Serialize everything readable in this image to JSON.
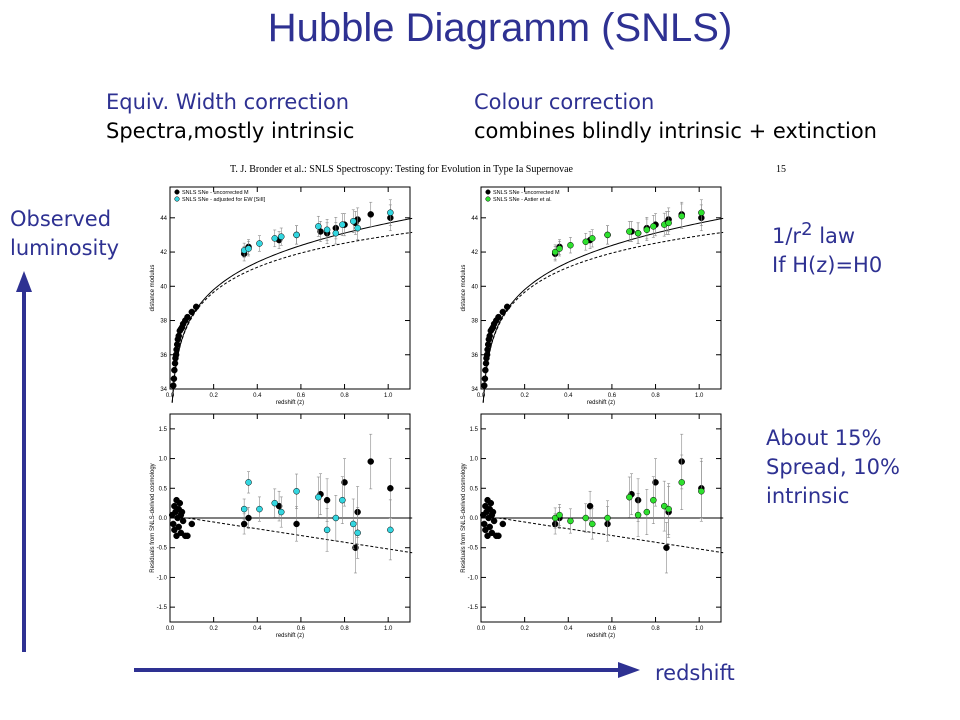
{
  "slide": {
    "title": "Hubble Diagramm (SNLS)",
    "left_note": {
      "line1": "Equiv. Width correction",
      "line2": "Spectra,mostly intrinsic"
    },
    "right_note": {
      "line1": "Colour correction",
      "line2": "combines blindly intrinsic + extinction"
    },
    "observed_luminosity": [
      "Observed",
      "luminosity"
    ],
    "inverse_square": {
      "prefix": "1/r",
      "power": "2",
      "suffix": " law",
      "line2": "If H(z)=H0"
    },
    "spread": [
      "About 15%",
      "Spread, 10%",
      "intrinsic"
    ],
    "redshift_arrow_label": "redshift",
    "arrow_color": "#2e3192"
  },
  "paper": {
    "header": "T. J. Bronder et al.: SNLS Spectroscopy: Testing for Evolution in Type Ia Supernovae",
    "page_number": "15"
  },
  "chart_data": [
    {
      "type": "scatter",
      "panel": "top-left",
      "xlabel": "redshift (z)",
      "ylabel": "distance modulus",
      "xlim": [
        0,
        1.1
      ],
      "ylim": [
        34,
        45.8
      ],
      "xticks": [
        "0.0",
        "0.2",
        "0.4",
        "0.6",
        "0.8",
        "1.0"
      ],
      "yticks": [
        "34",
        "36",
        "38",
        "40",
        "42",
        "44"
      ],
      "legend": [
        "SNLS SNe - uncorrected M",
        "SNLS SNe - adjusted for EW [SiII]"
      ],
      "legend_position": "top-left",
      "series": [
        {
          "name": "SNLS SNe - uncorrected M",
          "color": "#000000",
          "x": [
            0.015,
            0.018,
            0.02,
            0.023,
            0.025,
            0.028,
            0.03,
            0.033,
            0.036,
            0.04,
            0.045,
            0.05,
            0.055,
            0.06,
            0.07,
            0.08,
            0.1,
            0.12,
            0.34,
            0.36,
            0.5,
            0.58,
            0.69,
            0.72,
            0.76,
            0.8,
            0.85,
            0.86,
            0.92,
            1.01
          ],
          "y": [
            34.2,
            34.6,
            35.1,
            35.5,
            35.8,
            36.0,
            36.3,
            36.6,
            36.9,
            37.1,
            37.4,
            37.5,
            37.6,
            37.8,
            38.0,
            38.2,
            38.5,
            38.8,
            41.9,
            42.3,
            42.7,
            43.0,
            43.2,
            43.1,
            43.4,
            43.6,
            43.7,
            43.9,
            44.2,
            44.0
          ]
        },
        {
          "name": "SNLS SNe - adjusted for EW [SiII]",
          "color": "#33d6e0",
          "x": [
            0.34,
            0.36,
            0.41,
            0.48,
            0.51,
            0.58,
            0.68,
            0.72,
            0.76,
            0.79,
            0.84,
            0.86,
            1.01
          ],
          "y": [
            42.1,
            42.2,
            42.5,
            42.8,
            42.9,
            43.0,
            43.5,
            43.3,
            43.1,
            43.6,
            43.8,
            43.4,
            44.3
          ]
        }
      ]
    },
    {
      "type": "scatter",
      "panel": "top-right",
      "xlabel": "redshift (z)",
      "ylabel": "distance modulus",
      "xlim": [
        0,
        1.1
      ],
      "ylim": [
        34,
        45.8
      ],
      "xticks": [
        "0.0",
        "0.2",
        "0.4",
        "0.6",
        "0.8",
        "1.0"
      ],
      "yticks": [
        "34",
        "36",
        "38",
        "40",
        "42",
        "44"
      ],
      "legend": [
        "SNLS SNe - uncorrected M",
        "SNLS SNe - Astier et al."
      ],
      "legend_position": "top-left",
      "series": [
        {
          "name": "SNLS SNe - uncorrected M",
          "color": "#000000",
          "x": [
            0.015,
            0.018,
            0.02,
            0.023,
            0.025,
            0.028,
            0.03,
            0.033,
            0.036,
            0.04,
            0.045,
            0.05,
            0.055,
            0.06,
            0.07,
            0.08,
            0.1,
            0.12,
            0.34,
            0.36,
            0.5,
            0.58,
            0.69,
            0.72,
            0.76,
            0.8,
            0.85,
            0.86,
            0.92,
            1.01
          ],
          "y": [
            34.2,
            34.6,
            35.1,
            35.5,
            35.8,
            36.0,
            36.3,
            36.6,
            36.9,
            37.1,
            37.4,
            37.5,
            37.6,
            37.8,
            38.0,
            38.2,
            38.5,
            38.8,
            41.9,
            42.3,
            42.7,
            43.0,
            43.2,
            43.1,
            43.4,
            43.6,
            43.7,
            43.9,
            44.2,
            44.0
          ]
        },
        {
          "name": "SNLS SNe - Astier et al.",
          "color": "#2ee02e",
          "x": [
            0.34,
            0.36,
            0.41,
            0.48,
            0.51,
            0.58,
            0.68,
            0.72,
            0.76,
            0.79,
            0.84,
            0.86,
            0.92,
            1.01
          ],
          "y": [
            42.0,
            42.2,
            42.4,
            42.6,
            42.8,
            43.0,
            43.2,
            43.1,
            43.3,
            43.5,
            43.6,
            43.7,
            44.1,
            44.3
          ]
        }
      ]
    },
    {
      "type": "scatter",
      "panel": "bottom-left",
      "xlabel": "redshift (z)",
      "ylabel": "Residuals from SNLS-derived cosmology",
      "xlim": [
        0,
        1.1
      ],
      "ylim": [
        -1.75,
        1.75
      ],
      "xticks": [
        "0.0",
        "0.2",
        "0.4",
        "0.6",
        "0.8",
        "1.0"
      ],
      "yticks": [
        "-1.5",
        "-1.0",
        "-0.5",
        "0.0",
        "0.5",
        "1.0",
        "1.5"
      ],
      "series": [
        {
          "name": "",
          "color": "#000000",
          "x": [
            0.01,
            0.015,
            0.02,
            0.02,
            0.025,
            0.03,
            0.03,
            0.035,
            0.04,
            0.04,
            0.045,
            0.05,
            0.05,
            0.055,
            0.06,
            0.07,
            0.08,
            0.1,
            0.34,
            0.36,
            0.5,
            0.58,
            0.69,
            0.72,
            0.8,
            0.85,
            0.86,
            0.92,
            1.01
          ],
          "y": [
            0.05,
            -0.1,
            0.2,
            -0.2,
            0.1,
            0.3,
            -0.3,
            0.0,
            0.15,
            -0.15,
            0.25,
            0.05,
            -0.25,
            0.1,
            -0.05,
            -0.3,
            -0.3,
            -0.1,
            -0.1,
            0.0,
            0.2,
            -0.1,
            0.4,
            0.3,
            0.6,
            -0.5,
            0.1,
            0.95,
            0.5
          ]
        },
        {
          "name": "",
          "color": "#33d6e0",
          "x": [
            0.34,
            0.36,
            0.41,
            0.48,
            0.51,
            0.58,
            0.68,
            0.72,
            0.76,
            0.79,
            0.84,
            0.86,
            1.01
          ],
          "y": [
            0.15,
            0.6,
            0.15,
            0.25,
            0.1,
            0.45,
            0.35,
            -0.2,
            0.0,
            0.3,
            -0.1,
            -0.25,
            -0.2
          ]
        }
      ]
    },
    {
      "type": "scatter",
      "panel": "bottom-right",
      "xlabel": "redshift (z)",
      "ylabel": "Residuals from SNLS-derived cosmology",
      "xlim": [
        0,
        1.1
      ],
      "ylim": [
        -1.75,
        1.75
      ],
      "xticks": [
        "0.0",
        "0.2",
        "0.4",
        "0.6",
        "0.8",
        "1.0"
      ],
      "yticks": [
        "-1.5",
        "-1.0",
        "-0.5",
        "0.0",
        "0.5",
        "1.0",
        "1.5"
      ],
      "series": [
        {
          "name": "",
          "color": "#000000",
          "x": [
            0.01,
            0.015,
            0.02,
            0.02,
            0.025,
            0.03,
            0.03,
            0.035,
            0.04,
            0.04,
            0.045,
            0.05,
            0.05,
            0.055,
            0.06,
            0.07,
            0.08,
            0.1,
            0.34,
            0.36,
            0.5,
            0.58,
            0.69,
            0.72,
            0.8,
            0.85,
            0.86,
            0.92,
            1.01
          ],
          "y": [
            0.05,
            -0.1,
            0.2,
            -0.2,
            0.1,
            0.3,
            -0.3,
            0.0,
            0.15,
            -0.15,
            0.25,
            0.05,
            -0.25,
            0.1,
            -0.05,
            -0.3,
            -0.3,
            -0.1,
            -0.1,
            0.0,
            0.2,
            -0.1,
            0.4,
            0.3,
            0.6,
            -0.5,
            0.1,
            0.95,
            0.5
          ]
        },
        {
          "name": "",
          "color": "#2ee02e",
          "x": [
            0.34,
            0.36,
            0.41,
            0.48,
            0.51,
            0.58,
            0.68,
            0.72,
            0.76,
            0.79,
            0.84,
            0.86,
            0.92,
            1.01
          ],
          "y": [
            0.0,
            0.05,
            -0.05,
            0.0,
            -0.1,
            0.0,
            0.35,
            0.05,
            0.1,
            0.3,
            0.2,
            0.15,
            0.6,
            0.45
          ]
        }
      ]
    }
  ]
}
